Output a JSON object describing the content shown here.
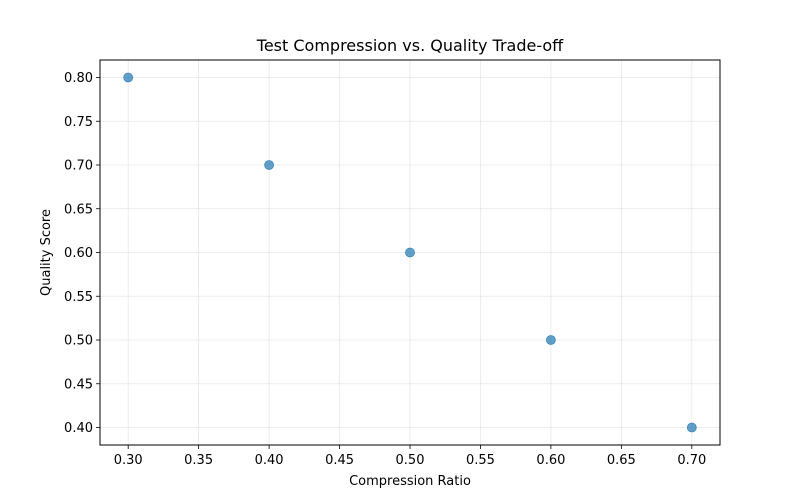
{
  "chart_data": {
    "type": "scatter",
    "title": "Test Compression vs. Quality Trade-off",
    "xlabel": "Compression Ratio",
    "ylabel": "Quality Score",
    "xlim": [
      0.28,
      0.72
    ],
    "ylim": [
      0.38,
      0.82
    ],
    "x_ticks": [
      0.3,
      0.35,
      0.4,
      0.45,
      0.5,
      0.55,
      0.6,
      0.65,
      0.7
    ],
    "y_ticks": [
      0.4,
      0.45,
      0.5,
      0.55,
      0.6,
      0.65,
      0.7,
      0.75,
      0.8
    ],
    "x": [
      0.3,
      0.4,
      0.5,
      0.6,
      0.7
    ],
    "y": [
      0.8,
      0.7,
      0.6,
      0.5,
      0.4
    ],
    "grid": true,
    "marker_color": "#1f77b4"
  }
}
